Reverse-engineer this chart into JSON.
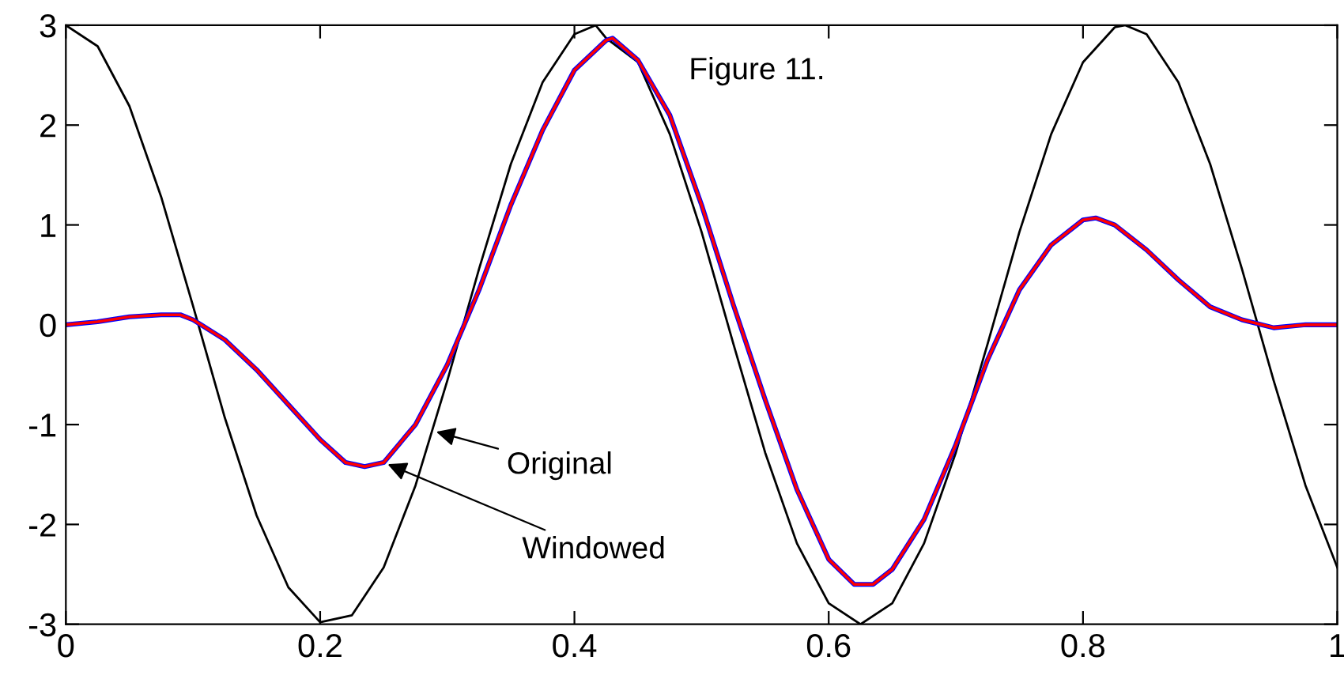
{
  "chart_data": {
    "type": "line",
    "xlim": [
      0,
      1
    ],
    "ylim": [
      -3,
      3
    ],
    "xticks": [
      0,
      0.2,
      0.4,
      0.6,
      0.8,
      1
    ],
    "yticks": [
      -3,
      -2,
      -1,
      0,
      1,
      2,
      3
    ],
    "grid": false,
    "legend": false,
    "marker": "none",
    "line_style": "solid",
    "series": [
      {
        "color": "#000000",
        "x": [
          0,
          0.025,
          0.05,
          0.075,
          0.1,
          0.125,
          0.15,
          0.175,
          0.2,
          0.225,
          0.25,
          0.275,
          0.3,
          0.325,
          0.35,
          0.375,
          0.4,
          0.4167,
          0.425,
          0.45,
          0.475,
          0.5,
          0.525,
          0.55,
          0.575,
          0.6,
          0.625,
          0.65,
          0.675,
          0.7,
          0.725,
          0.75,
          0.775,
          0.8,
          0.825,
          0.8333,
          0.85,
          0.875,
          0.9,
          0.925,
          0.95,
          0.975,
          1.0
        ],
        "values": [
          3,
          2.79,
          2.19,
          1.28,
          0.19,
          -0.93,
          -1.91,
          -2.63,
          -2.98,
          -2.91,
          -2.43,
          -1.61,
          -0.56,
          0.56,
          1.61,
          2.43,
          2.91,
          3,
          2.87,
          2.63,
          1.91,
          0.93,
          -0.19,
          -1.28,
          -2.19,
          -2.79,
          -3,
          -2.79,
          -2.19,
          -1.28,
          -0.19,
          0.93,
          1.91,
          2.63,
          2.98,
          3,
          2.91,
          2.43,
          1.61,
          0.56,
          -0.56,
          -1.61,
          -2.43
        ]
      },
      {
        "color": "#0000ff",
        "x": [
          0,
          0.025,
          0.05,
          0.075,
          0.09,
          0.1,
          0.125,
          0.15,
          0.175,
          0.2,
          0.22,
          0.235,
          0.25,
          0.275,
          0.3,
          0.325,
          0.35,
          0.375,
          0.4,
          0.425,
          0.43,
          0.45,
          0.475,
          0.5,
          0.525,
          0.55,
          0.575,
          0.6,
          0.62,
          0.635,
          0.65,
          0.675,
          0.7,
          0.725,
          0.75,
          0.775,
          0.8,
          0.81,
          0.825,
          0.85,
          0.875,
          0.9,
          0.925,
          0.95,
          0.975,
          1
        ],
        "values": [
          0,
          0.03,
          0.08,
          0.1,
          0.1,
          0.05,
          -0.15,
          -0.45,
          -0.8,
          -1.15,
          -1.38,
          -1.42,
          -1.38,
          -1.0,
          -0.4,
          0.35,
          1.2,
          1.95,
          2.55,
          2.85,
          2.87,
          2.65,
          2.1,
          1.2,
          0.2,
          -0.75,
          -1.65,
          -2.35,
          -2.6,
          -2.6,
          -2.45,
          -1.95,
          -1.2,
          -0.35,
          0.35,
          0.8,
          1.05,
          1.07,
          1.0,
          0.75,
          0.45,
          0.18,
          0.05,
          -0.03,
          0,
          0
        ]
      },
      {
        "color": "#ff0000",
        "x": [
          0,
          0.025,
          0.05,
          0.075,
          0.09,
          0.1,
          0.125,
          0.15,
          0.175,
          0.2,
          0.22,
          0.235,
          0.25,
          0.275,
          0.3,
          0.325,
          0.35,
          0.375,
          0.4,
          0.425,
          0.43,
          0.45,
          0.475,
          0.5,
          0.525,
          0.55,
          0.575,
          0.6,
          0.62,
          0.635,
          0.65,
          0.675,
          0.7,
          0.725,
          0.75,
          0.775,
          0.8,
          0.81,
          0.825,
          0.85,
          0.875,
          0.9,
          0.925,
          0.95,
          0.975,
          1
        ],
        "values": [
          0,
          0.03,
          0.08,
          0.1,
          0.1,
          0.05,
          -0.15,
          -0.45,
          -0.8,
          -1.15,
          -1.38,
          -1.42,
          -1.38,
          -1.0,
          -0.4,
          0.35,
          1.2,
          1.95,
          2.55,
          2.85,
          2.87,
          2.65,
          2.1,
          1.2,
          0.2,
          -0.75,
          -1.65,
          -2.35,
          -2.6,
          -2.6,
          -2.45,
          -1.95,
          -1.2,
          -0.35,
          0.35,
          0.8,
          1.05,
          1.07,
          1.0,
          0.75,
          0.45,
          0.18,
          0.05,
          -0.03,
          0,
          0
        ]
      }
    ],
    "annotations": [
      "Figure 11.",
      {
        "text": "Original",
        "x": 0.288,
        "y": -1.06
      },
      {
        "text": "Windowed",
        "x": 0.25,
        "y": -1.38
      }
    ]
  }
}
